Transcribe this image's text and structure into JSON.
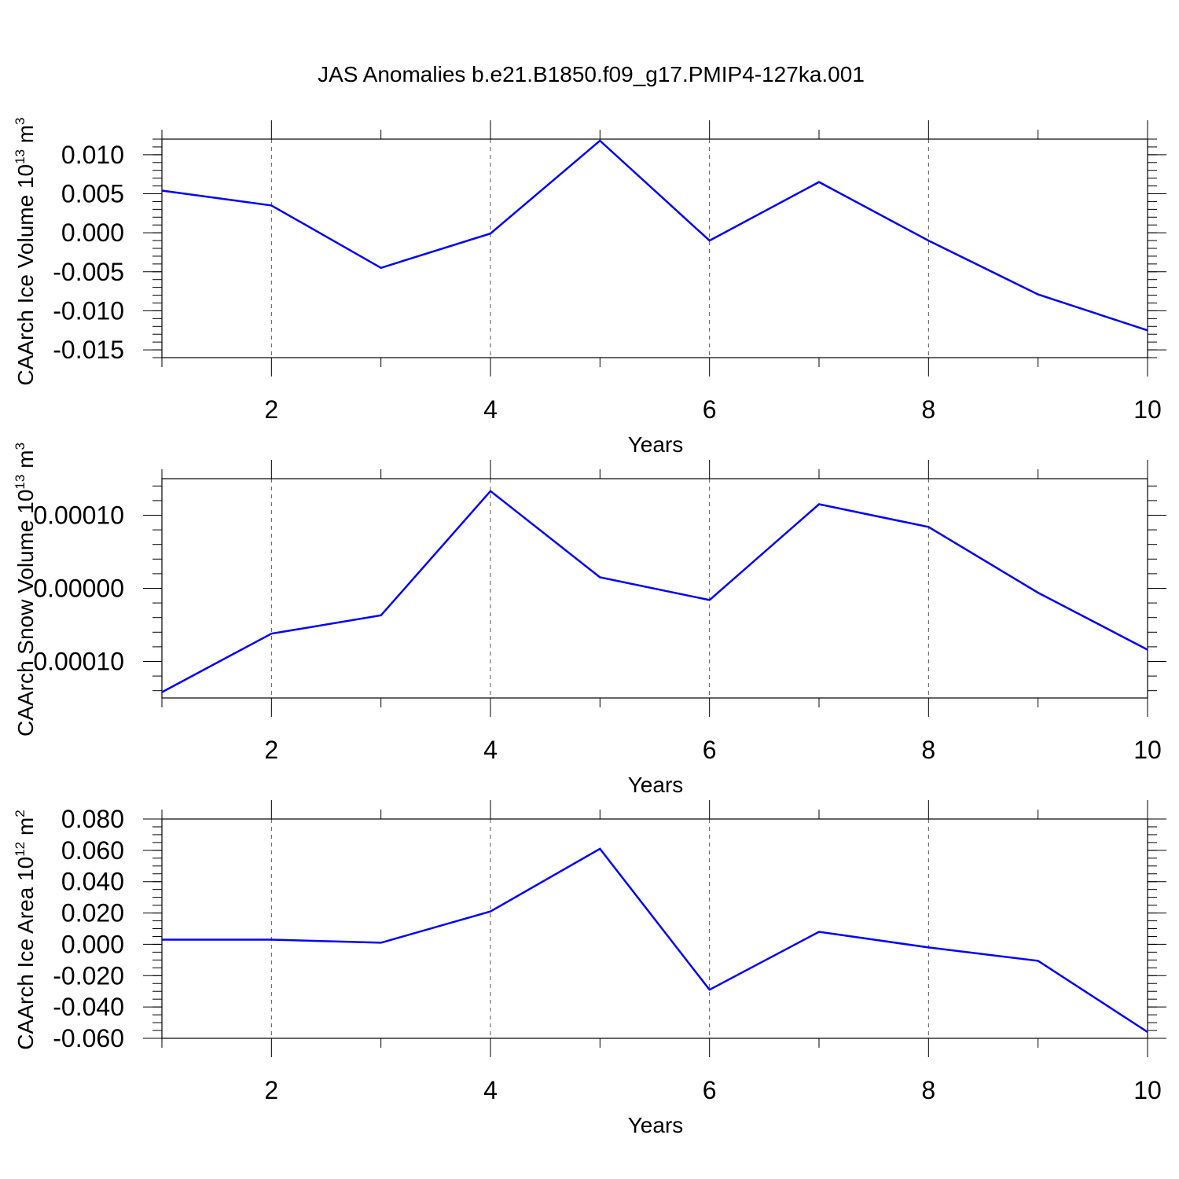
{
  "title": "JAS Anomalies b.e21.B1850.f09_g17.PMIP4-127ka.001",
  "colors": {
    "line": "#0000ff",
    "frame": "#000000",
    "grid": "#555555"
  },
  "chart_data": [
    {
      "type": "line",
      "name": "ice-volume",
      "ylabel": {
        "text": "CAArch Ice Volume 10",
        "sup": "13",
        "unit": " m",
        "unit_sup": "3"
      },
      "xlabel": "Years",
      "xlim": [
        1,
        10
      ],
      "ylim": [
        -0.016,
        0.012
      ],
      "xticks": [
        2,
        4,
        6,
        8,
        10
      ],
      "yticks": [
        -0.015,
        -0.01,
        -0.005,
        0.0,
        0.005,
        0.01
      ],
      "ytick_labels": [
        "-0.015",
        "-0.010",
        "-0.005",
        "0.000",
        "0.005",
        "0.010"
      ],
      "ytick_minor_step": 0.001,
      "grid_x": [
        2,
        4,
        6,
        8
      ],
      "x": [
        1,
        2,
        3,
        4,
        5,
        6,
        7,
        8,
        9,
        10
      ],
      "values": [
        0.0054,
        0.0035,
        -0.0045,
        -0.0001,
        0.0118,
        -0.001,
        0.0065,
        -0.001,
        -0.0079,
        -0.0125
      ]
    },
    {
      "type": "line",
      "name": "snow-volume",
      "ylabel": {
        "text": "CAArch Snow Volume 10",
        "sup": "13",
        "unit": " m",
        "unit_sup": "3"
      },
      "xlabel": "Years",
      "xlim": [
        1,
        10
      ],
      "ylim": [
        -0.00015,
        0.00015
      ],
      "xticks": [
        2,
        4,
        6,
        8,
        10
      ],
      "yticks": [
        -0.0001,
        0.0,
        0.0001
      ],
      "ytick_labels": [
        "-0.00010",
        "0.00000",
        "0.00010"
      ],
      "ytick_minor_step": 2e-05,
      "grid_x": [
        2,
        4,
        6,
        8
      ],
      "x": [
        1,
        2,
        3,
        4,
        5,
        6,
        7,
        8,
        9,
        10
      ],
      "values": [
        -0.000142,
        -6.2e-05,
        -3.7e-05,
        0.000133,
        1.5e-05,
        -1.6e-05,
        0.000115,
        8.4e-05,
        -6e-06,
        -8.4e-05
      ]
    },
    {
      "type": "line",
      "name": "ice-area",
      "ylabel": {
        "text": "CAArch Ice Area 10",
        "sup": "12",
        "unit": " m",
        "unit_sup": "2"
      },
      "xlabel": "Years",
      "xlim": [
        1,
        10
      ],
      "ylim": [
        -0.06,
        0.08
      ],
      "xticks": [
        2,
        4,
        6,
        8,
        10
      ],
      "yticks": [
        -0.06,
        -0.04,
        -0.02,
        0.0,
        0.02,
        0.04,
        0.06,
        0.08
      ],
      "ytick_labels": [
        "-0.060",
        "-0.040",
        "-0.020",
        "0.000",
        "0.020",
        "0.040",
        "0.060",
        "0.080"
      ],
      "ytick_minor_step": 0.005,
      "grid_x": [
        2,
        4,
        6,
        8
      ],
      "x": [
        1,
        2,
        3,
        4,
        5,
        6,
        7,
        8,
        9,
        10
      ],
      "values": [
        0.003,
        0.003,
        0.001,
        0.021,
        0.061,
        -0.029,
        0.008,
        -0.002,
        -0.0105,
        -0.056
      ]
    }
  ]
}
